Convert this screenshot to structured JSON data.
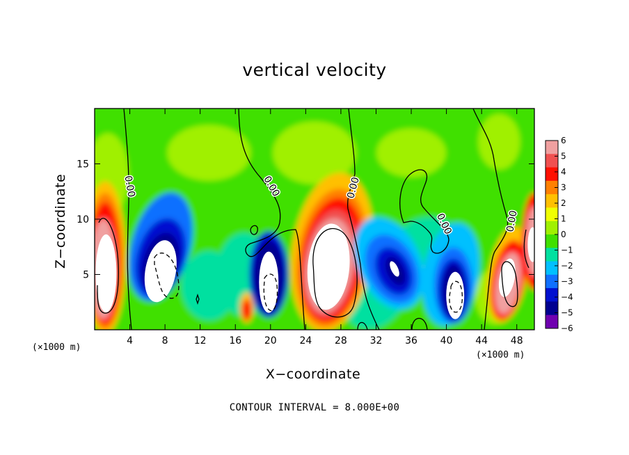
{
  "chart_data": {
    "type": "heatmap",
    "title": "vertical velocity",
    "xlabel": "X−coordinate",
    "ylabel": "Z−coordinate",
    "x_unit_label": "(×1000 m)",
    "xlim": [
      0,
      50
    ],
    "ylim": [
      0,
      20
    ],
    "x_ticks": [
      "4",
      "8",
      "12",
      "16",
      "20",
      "24",
      "28",
      "32",
      "36",
      "40",
      "44",
      "48"
    ],
    "x_tick_values": [
      4,
      8,
      12,
      16,
      20,
      24,
      28,
      32,
      36,
      40,
      44,
      48
    ],
    "y_ticks": [
      "5",
      "10",
      "15"
    ],
    "y_tick_values": [
      5,
      10,
      15
    ],
    "colorbar": {
      "labels": [
        "6",
        "5",
        "4",
        "3",
        "2",
        "1",
        "0",
        "−1",
        "−2",
        "−3",
        "−4",
        "−5",
        "−6"
      ],
      "values": [
        6,
        5,
        4,
        3,
        2,
        1,
        0,
        -1,
        -2,
        -3,
        -4,
        -5,
        -6
      ],
      "colors": [
        "#f0a0a0",
        "#f05050",
        "#ff1000",
        "#ff8000",
        "#ffc000",
        "#f0ff00",
        "#a0f000",
        "#40e000",
        "#00e0a0",
        "#00c0ff",
        "#1070ff",
        "#0010d0",
        "#000090",
        "#7000b0"
      ]
    },
    "contour_label": "0.00",
    "contour_interval": "CONTOUR INTERVAL = 8.000E+00",
    "features": [
      {
        "x": 1.3,
        "z": 5.0,
        "w": 7.0,
        "sign": "positive"
      },
      {
        "x": 7.0,
        "z": 6.0,
        "w": -6.5,
        "sign": "negative"
      },
      {
        "x": 17.0,
        "z": 1.5,
        "w": 4.0,
        "sign": "positive"
      },
      {
        "x": 19.5,
        "z": 4.5,
        "w": -7.0,
        "sign": "negative"
      },
      {
        "x": 26.5,
        "z": 6.0,
        "w": 8.0,
        "sign": "positive"
      },
      {
        "x": 33.5,
        "z": 5.5,
        "w": -5.5,
        "sign": "negative"
      },
      {
        "x": 41.0,
        "z": 3.5,
        "w": -7.0,
        "sign": "negative"
      },
      {
        "x": 47.0,
        "z": 4.0,
        "w": 7.0,
        "sign": "positive"
      },
      {
        "x": 49.5,
        "z": 8.0,
        "w": 7.0,
        "sign": "positive"
      }
    ]
  }
}
